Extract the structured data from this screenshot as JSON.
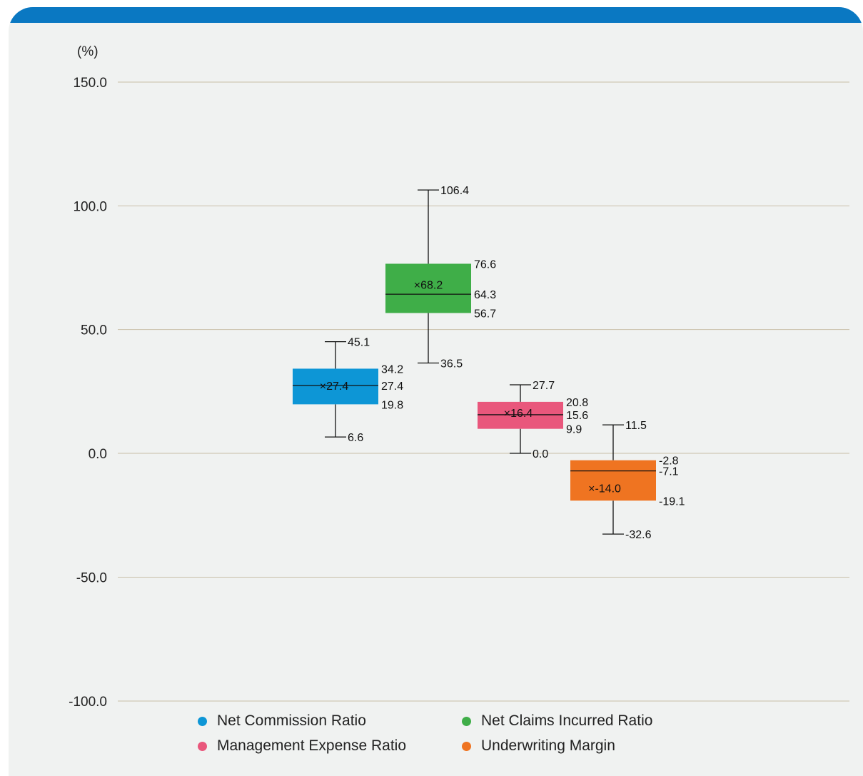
{
  "chart_data": {
    "type": "boxplot",
    "y_unit_label": "(%)",
    "ylim": [
      -100,
      150
    ],
    "yticks": [
      "150.0",
      "100.0",
      "50.0",
      "0.0",
      "-50.0",
      "-100.0"
    ],
    "ytick_values": [
      150,
      100,
      50,
      0,
      -50,
      -100
    ],
    "grid": true,
    "legend_position": "bottom",
    "series": [
      {
        "name": "Net Commission Ratio",
        "color": "#0d96d6",
        "max": 45.1,
        "q3": 34.2,
        "median": 27.4,
        "q1": 19.8,
        "min": 6.6,
        "mean": 27.4,
        "labels": {
          "max": "45.1",
          "q3": "34.2",
          "median": "27.4",
          "q1": "19.8",
          "min": "6.6",
          "mean": "27.4"
        }
      },
      {
        "name": "Net Claims Incurred Ratio",
        "color": "#3fae48",
        "max": 106.4,
        "q3": 76.6,
        "median": 64.3,
        "q1": 56.7,
        "min": 36.5,
        "mean": 68.2,
        "labels": {
          "max": "106.4",
          "q3": "76.6",
          "median": "64.3",
          "q1": "56.7",
          "min": "36.5",
          "mean": "68.2"
        }
      },
      {
        "name": "Management Expense Ratio",
        "color": "#e9577c",
        "max": 27.7,
        "q3": 20.8,
        "median": 15.6,
        "q1": 9.9,
        "min": 0.0,
        "mean": 16.4,
        "labels": {
          "max": "27.7",
          "q3": "20.8",
          "median": "15.6",
          "q1": "9.9",
          "min": "0.0",
          "mean": "16.4"
        }
      },
      {
        "name": "Underwriting Margin",
        "color": "#ef7421",
        "max": 11.5,
        "q3": -2.8,
        "median": -7.1,
        "q1": -19.1,
        "min": -32.6,
        "mean": -14.0,
        "labels": {
          "max": "11.5",
          "q3": "-2.8",
          "median": "-7.1",
          "q1": "-19.1",
          "min": "-32.6",
          "mean": "-14.0"
        }
      }
    ]
  },
  "legend": {
    "items": [
      {
        "label": "Net Commission Ratio",
        "color": "#0d96d6"
      },
      {
        "label": "Net Claims Incurred Ratio",
        "color": "#3fae48"
      },
      {
        "label": "Management Expense Ratio",
        "color": "#e9577c"
      },
      {
        "label": "Underwriting Margin",
        "color": "#ef7421"
      }
    ]
  },
  "colors": {
    "header_bar": "#0a78c2",
    "background": "#f0f2f1",
    "gridline": "#c9bfa8"
  }
}
